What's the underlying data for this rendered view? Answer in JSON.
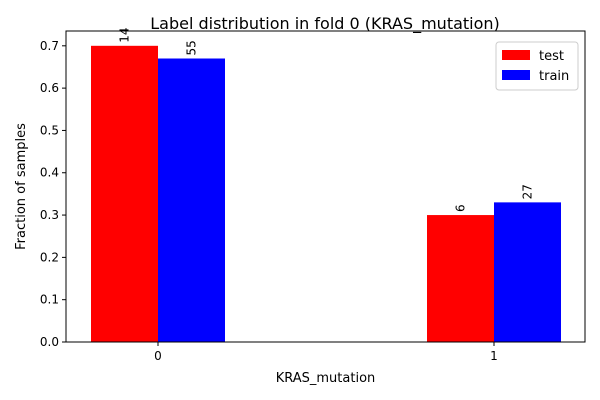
{
  "chart_data": {
    "type": "bar",
    "title": "Label distribution in fold 0 (KRAS_mutation)",
    "xlabel": "KRAS_mutation",
    "ylabel": "Fraction of samples",
    "categories": [
      "0",
      "1"
    ],
    "ylim": [
      0,
      0.735
    ],
    "yticks": [
      0.0,
      0.1,
      0.2,
      0.3,
      0.4,
      0.5,
      0.6,
      0.7
    ],
    "ytick_labels": [
      "0.0",
      "0.1",
      "0.2",
      "0.3",
      "0.4",
      "0.5",
      "0.6",
      "0.7"
    ],
    "grid": false,
    "legend_position": "top-right",
    "series": [
      {
        "name": "test",
        "color": "#ff0000",
        "values": [
          0.7,
          0.3
        ],
        "labels": [
          "14",
          "6"
        ]
      },
      {
        "name": "train",
        "color": "#0000ff",
        "values": [
          0.67,
          0.33
        ],
        "labels": [
          "55",
          "27"
        ]
      }
    ]
  }
}
